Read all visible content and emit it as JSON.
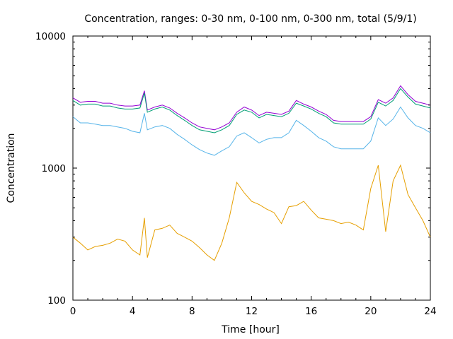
{
  "chart_data": {
    "type": "line",
    "title": "Concentration, ranges: 0-30 nm, 0-100 nm, 0-300 nm, total (5/9/1)",
    "xlabel": "Time [hour]",
    "ylabel": "Concentration",
    "xlim": [
      0,
      24
    ],
    "ylim": [
      100,
      10000
    ],
    "yscale": "log",
    "xticks": [
      "0",
      "4",
      "8",
      "12",
      "16",
      "20",
      "24"
    ],
    "yticks": [
      "100",
      "1000",
      "10000"
    ],
    "grid": false,
    "legend": "none",
    "series": [
      {
        "color": "#9400d3",
        "x": [
          0,
          0.5,
          1,
          1.5,
          2,
          2.5,
          3,
          3.5,
          4,
          4.5,
          4.8,
          5,
          5.5,
          6,
          6.5,
          7,
          7.5,
          8,
          8.5,
          9,
          9.5,
          10,
          10.5,
          11,
          11.5,
          12,
          12.5,
          13,
          13.5,
          14,
          14.5,
          15,
          15.5,
          16,
          16.5,
          17,
          17.5,
          18,
          18.5,
          19,
          19.5,
          20,
          20.5,
          21,
          21.5,
          22,
          22.5,
          23,
          23.5,
          24
        ],
        "y": [
          3400,
          3150,
          3200,
          3200,
          3100,
          3100,
          3000,
          2950,
          2950,
          3000,
          3850,
          2750,
          2900,
          3000,
          2850,
          2600,
          2400,
          2200,
          2050,
          2000,
          1950,
          2050,
          2200,
          2650,
          2900,
          2750,
          2500,
          2650,
          2600,
          2550,
          2700,
          3250,
          3050,
          2900,
          2700,
          2550,
          2300,
          2250,
          2250,
          2250,
          2250,
          2450,
          3300,
          3100,
          3400,
          4200,
          3600,
          3200,
          3100,
          3000
        ]
      },
      {
        "color": "#009e73",
        "x": [
          0,
          0.5,
          1,
          1.5,
          2,
          2.5,
          3,
          3.5,
          4,
          4.5,
          4.8,
          5,
          5.5,
          6,
          6.5,
          7,
          7.5,
          8,
          8.5,
          9,
          9.5,
          10,
          10.5,
          11,
          11.5,
          12,
          12.5,
          13,
          13.5,
          14,
          14.5,
          15,
          15.5,
          16,
          16.5,
          17,
          17.5,
          18,
          18.5,
          19,
          19.5,
          20,
          20.5,
          21,
          21.5,
          22,
          22.5,
          23,
          23.5,
          24
        ],
        "y": [
          3250,
          3000,
          3050,
          3050,
          2950,
          2950,
          2850,
          2800,
          2800,
          2850,
          3700,
          2650,
          2800,
          2900,
          2750,
          2500,
          2300,
          2100,
          1950,
          1900,
          1850,
          1950,
          2100,
          2550,
          2750,
          2650,
          2400,
          2550,
          2500,
          2450,
          2600,
          3100,
          2950,
          2800,
          2600,
          2450,
          2200,
          2150,
          2150,
          2150,
          2150,
          2350,
          3150,
          2950,
          3250,
          4000,
          3450,
          3050,
          2950,
          2850
        ]
      },
      {
        "color": "#56b4e9",
        "x": [
          0,
          0.5,
          1,
          1.5,
          2,
          2.5,
          3,
          3.5,
          4,
          4.5,
          4.8,
          5,
          5.5,
          6,
          6.5,
          7,
          7.5,
          8,
          8.5,
          9,
          9.5,
          10,
          10.5,
          11,
          11.5,
          12,
          12.5,
          13,
          13.5,
          14,
          14.5,
          15,
          15.5,
          16,
          16.5,
          17,
          17.5,
          18,
          18.5,
          19,
          19.5,
          20,
          20.5,
          21,
          21.5,
          22,
          22.5,
          23,
          23.5,
          24
        ],
        "y": [
          2450,
          2200,
          2200,
          2150,
          2100,
          2100,
          2050,
          2000,
          1900,
          1850,
          2600,
          1950,
          2050,
          2100,
          2000,
          1800,
          1650,
          1500,
          1380,
          1300,
          1250,
          1350,
          1450,
          1750,
          1850,
          1700,
          1550,
          1650,
          1700,
          1700,
          1850,
          2300,
          2100,
          1900,
          1700,
          1600,
          1450,
          1400,
          1400,
          1400,
          1400,
          1600,
          2400,
          2100,
          2350,
          2900,
          2400,
          2100,
          2000,
          1850
        ]
      },
      {
        "color": "#e69f00",
        "x": [
          0,
          0.5,
          1,
          1.5,
          2,
          2.5,
          3,
          3.5,
          4,
          4.5,
          4.8,
          5,
          5.5,
          6,
          6.5,
          7,
          7.5,
          8,
          8.5,
          9,
          9.5,
          10,
          10.5,
          11,
          11.5,
          12,
          12.5,
          13,
          13.5,
          14,
          14.5,
          15,
          15.5,
          16,
          16.5,
          17,
          17.5,
          18,
          18.5,
          19,
          19.5,
          20,
          20.5,
          21,
          21.5,
          22,
          22.5,
          23,
          23.5,
          24
        ],
        "y": [
          300,
          270,
          240,
          255,
          260,
          270,
          290,
          280,
          240,
          220,
          420,
          210,
          340,
          350,
          370,
          320,
          300,
          280,
          250,
          220,
          200,
          270,
          420,
          780,
          650,
          560,
          530,
          490,
          460,
          380,
          510,
          520,
          560,
          480,
          420,
          410,
          400,
          380,
          390,
          370,
          340,
          700,
          1050,
          330,
          800,
          1050,
          630,
          500,
          400,
          300
        ]
      }
    ]
  }
}
